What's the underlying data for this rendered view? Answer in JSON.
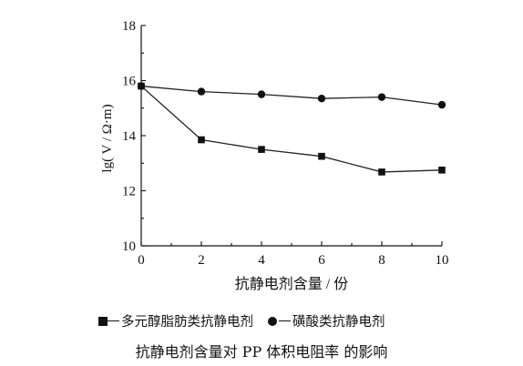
{
  "chart_data": {
    "type": "line",
    "x": [
      0,
      2,
      4,
      6,
      8,
      10
    ],
    "xlim": [
      0,
      10
    ],
    "ylim": [
      10,
      18
    ],
    "xticks": [
      "0",
      "2",
      "4",
      "6",
      "8",
      "10"
    ],
    "yticks": [
      "10",
      "12",
      "14",
      "16",
      "18"
    ],
    "xlabel": "抗静电剂含量 / 份",
    "ylabel": "lg( V / Ω·m)",
    "title": "抗静电剂含量对 PP 体积电阻率 的影响",
    "series": [
      {
        "name": "多元醇脂肪类抗静电剂",
        "marker": "square",
        "values": [
          15.8,
          13.85,
          13.5,
          13.25,
          12.68,
          12.75
        ]
      },
      {
        "name": "磺酸类抗静电剂",
        "marker": "circle",
        "values": [
          15.8,
          15.6,
          15.5,
          15.35,
          15.4,
          15.12
        ]
      }
    ],
    "legend_position": "bottom",
    "grid": false
  }
}
